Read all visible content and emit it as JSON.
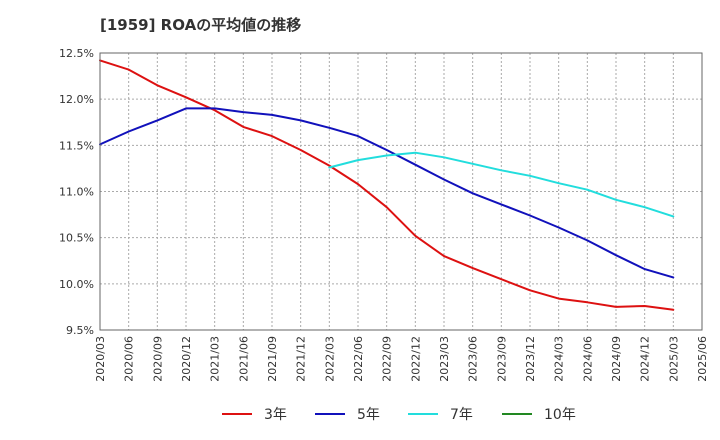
{
  "chart_data": {
    "type": "line",
    "title": "[1959]  ROAの平均値の推移",
    "xlabel": "",
    "ylabel": "",
    "ylim": [
      9.5,
      12.5
    ],
    "yticks": [
      9.5,
      10.0,
      10.5,
      11.0,
      11.5,
      12.0,
      12.5
    ],
    "ytick_labels": [
      "9.5%",
      "10.0%",
      "10.5%",
      "11.0%",
      "11.5%",
      "12.0%",
      "12.5%"
    ],
    "xticks": [
      "2020/03",
      "2020/06",
      "2020/09",
      "2020/12",
      "2021/03",
      "2021/06",
      "2021/09",
      "2021/12",
      "2022/03",
      "2022/06",
      "2022/09",
      "2022/12",
      "2023/03",
      "2023/06",
      "2023/09",
      "2023/12",
      "2024/03",
      "2024/06",
      "2024/09",
      "2024/12",
      "2025/03",
      "2025/06"
    ],
    "grid": true,
    "legend_position": "bottom",
    "series": [
      {
        "name": "3年",
        "color": "#dd1111",
        "x": [
          "2020/03",
          "2020/06",
          "2020/09",
          "2020/12",
          "2021/03",
          "2021/06",
          "2021/09",
          "2021/12",
          "2022/03",
          "2022/06",
          "2022/09",
          "2022/12",
          "2023/03",
          "2023/06",
          "2023/09",
          "2023/12",
          "2024/03",
          "2024/06",
          "2024/09",
          "2024/12",
          "2025/03"
        ],
        "values": [
          12.42,
          12.32,
          12.15,
          12.02,
          11.88,
          11.7,
          11.6,
          11.45,
          11.28,
          11.08,
          10.83,
          10.52,
          10.3,
          10.17,
          10.05,
          9.93,
          9.84,
          9.8,
          9.75,
          9.76,
          9.72
        ]
      },
      {
        "name": "5年",
        "color": "#1111bb",
        "x": [
          "2020/03",
          "2020/06",
          "2020/09",
          "2020/12",
          "2021/03",
          "2021/06",
          "2021/09",
          "2021/12",
          "2022/03",
          "2022/06",
          "2022/09",
          "2022/12",
          "2023/03",
          "2023/06",
          "2023/09",
          "2023/12",
          "2024/03",
          "2024/06",
          "2024/09",
          "2024/12",
          "2025/03"
        ],
        "values": [
          11.51,
          11.65,
          11.77,
          11.9,
          11.9,
          11.86,
          11.83,
          11.77,
          11.69,
          11.6,
          11.45,
          11.29,
          11.13,
          10.98,
          10.86,
          10.74,
          10.61,
          10.47,
          10.31,
          10.16,
          10.07
        ]
      },
      {
        "name": "7年",
        "color": "#22dddd",
        "x": [
          "2022/03",
          "2022/06",
          "2022/09",
          "2022/12",
          "2023/03",
          "2023/06",
          "2023/09",
          "2023/12",
          "2024/03",
          "2024/06",
          "2024/09",
          "2024/12",
          "2025/03"
        ],
        "values": [
          11.26,
          11.34,
          11.39,
          11.42,
          11.37,
          11.3,
          11.23,
          11.17,
          11.09,
          11.02,
          10.91,
          10.83,
          10.73
        ]
      },
      {
        "name": "10年",
        "color": "#228822",
        "x": [],
        "values": []
      }
    ]
  }
}
